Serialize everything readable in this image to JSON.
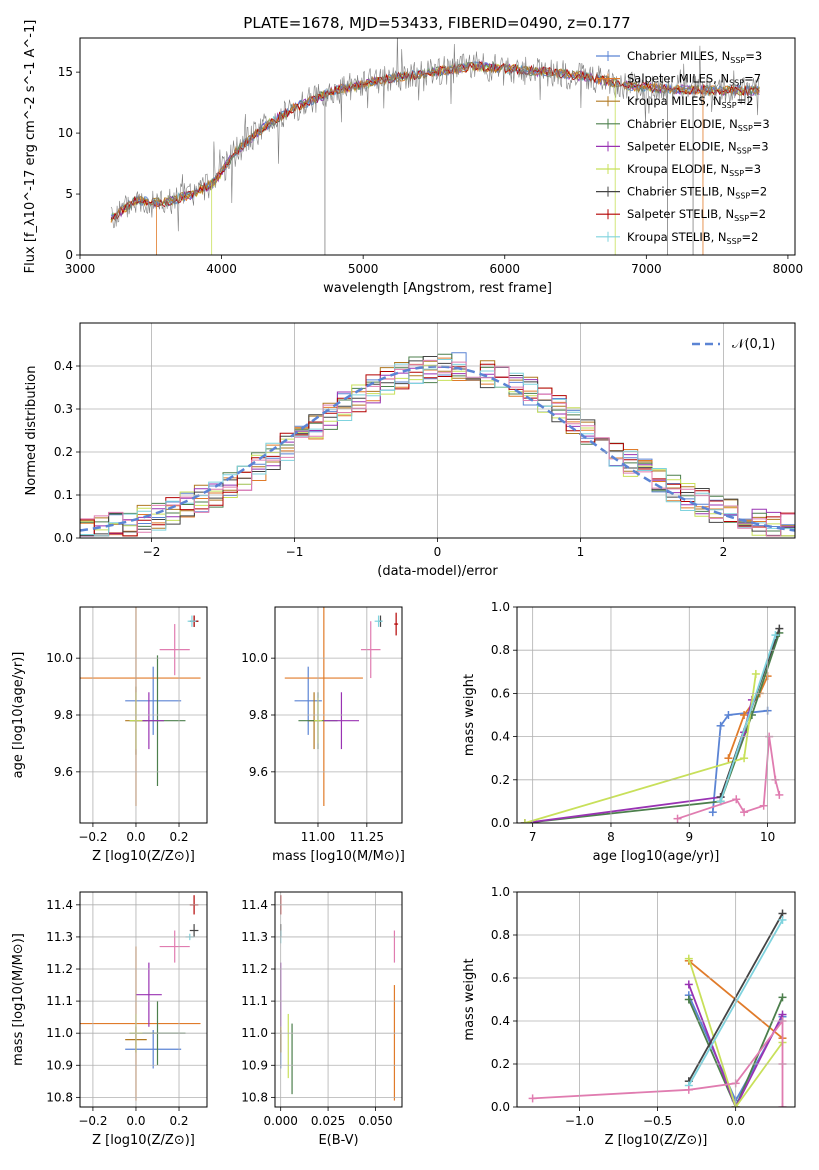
{
  "title": "PLATE=1678, MJD=53433, FIBERID=0490, z=0.177",
  "colors": {
    "chabrier_miles": "#5b84d4",
    "salpeter_miles": "#e07b2a",
    "kroupa_miles": "#b07820",
    "chabrier_elodie": "#4c7f4c",
    "salpeter_elodie": "#9933b3",
    "kroupa_elodie": "#c8e05a",
    "chabrier_stelib": "#444444",
    "salpeter_stelib": "#b30000",
    "kroupa_stelib": "#7fd3de",
    "pink": "#e07cb0",
    "gray": "#7f7f7f",
    "grid": "#b0b0b0",
    "normal_curve": "#5b84d4"
  },
  "chart_data": [
    {
      "id": "spectrum",
      "type": "line",
      "xlabel": "wavelength [Angstrom, rest frame]",
      "ylabel": "Flux [f_λ10^-17 erg cm^-2 s^-1 A^-1]",
      "xlim": [
        3000,
        8050
      ],
      "ylim": [
        0,
        17.8
      ],
      "xticks": [
        "3000",
        "4000",
        "5000",
        "6000",
        "7000",
        "8000"
      ],
      "yticks": [
        "0",
        "5",
        "10",
        "15"
      ],
      "grid": false,
      "legend_position": "right",
      "legend": [
        {
          "label": "Chabrier MILES, N_SSP=3",
          "color": "chabrier_miles"
        },
        {
          "label": "Salpeter MILES, N_SSP=7",
          "color": "salpeter_miles"
        },
        {
          "label": "Kroupa MILES, N_SSP=2",
          "color": "kroupa_miles"
        },
        {
          "label": "Chabrier ELODIE, N_SSP=3",
          "color": "chabrier_elodie"
        },
        {
          "label": "Salpeter ELODIE, N_SSP=3",
          "color": "salpeter_elodie"
        },
        {
          "label": "Kroupa ELODIE, N_SSP=3",
          "color": "kroupa_elodie"
        },
        {
          "label": "Chabrier STELIB, N_SSP=2",
          "color": "chabrier_stelib"
        },
        {
          "label": "Salpeter STELIB, N_SSP=2",
          "color": "salpeter_stelib"
        },
        {
          "label": "Kroupa STELIB, N_SSP=2",
          "color": "kroupa_stelib"
        }
      ],
      "continuum": {
        "x": [
          3220,
          3400,
          3600,
          3800,
          3950,
          4100,
          4300,
          4500,
          4800,
          5000,
          5200,
          5500,
          5800,
          6000,
          6300,
          6600,
          6900,
          7200,
          7500,
          7800
        ],
        "y": [
          3.0,
          4.5,
          4.3,
          5.0,
          6.0,
          8.5,
          10.5,
          12.0,
          13.5,
          14.0,
          14.5,
          15.0,
          15.5,
          15.3,
          15.0,
          14.6,
          13.8,
          13.6,
          13.5,
          13.5
        ]
      }
    },
    {
      "id": "residuals",
      "type": "histogram",
      "xlabel": "(data-model)/error",
      "ylabel": "Normed distribution",
      "xlim": [
        -2.5,
        2.5
      ],
      "ylim": [
        0,
        0.5
      ],
      "xticks": [
        "−2",
        "−1",
        "0",
        "1",
        "2"
      ],
      "yticks": [
        "0.0",
        "0.1",
        "0.2",
        "0.3",
        "0.4"
      ],
      "grid": true,
      "legend_position": "top-right",
      "legend_label": "𝒩(0,1)",
      "bin_width": 0.1
    },
    {
      "id": "z_age",
      "type": "errorbar",
      "xlabel": "Z [log10(Z/Z⊙)]",
      "ylabel": "age [log10(age/yr)]",
      "xlim": [
        -0.26,
        0.33
      ],
      "ylim": [
        9.42,
        10.18
      ],
      "xticks": [
        "−0.2",
        "0.0",
        "0.2"
      ],
      "yticks": [
        "9.6",
        "9.8",
        "10.0"
      ],
      "grid": true,
      "points": [
        {
          "x": 0.08,
          "y": 9.85,
          "xerr": 0.13,
          "yerr": 0.12,
          "color": "chabrier_miles"
        },
        {
          "x": 0.0,
          "y": 9.93,
          "xerr": 0.3,
          "yerr": 0.45,
          "color": "salpeter_miles"
        },
        {
          "x": 0.0,
          "y": 9.78,
          "xerr": 0.05,
          "yerr": 0.12,
          "color": "kroupa_miles"
        },
        {
          "x": 0.1,
          "y": 9.78,
          "xerr": 0.13,
          "yerr": 0.23,
          "color": "chabrier_elodie"
        },
        {
          "x": 0.06,
          "y": 9.78,
          "xerr": 0.07,
          "yerr": 0.1,
          "color": "salpeter_elodie"
        },
        {
          "x": 0.0,
          "y": 9.78,
          "xerr": 0.03,
          "yerr": 0.1,
          "color": "kroupa_elodie"
        },
        {
          "x": 0.27,
          "y": 10.13,
          "xerr": 0.02,
          "yerr": 0.02,
          "color": "chabrier_stelib"
        },
        {
          "x": 0.27,
          "y": 10.13,
          "xerr": 0.02,
          "yerr": 0.02,
          "color": "salpeter_stelib"
        },
        {
          "x": 0.26,
          "y": 10.13,
          "xerr": 0.02,
          "yerr": 0.02,
          "color": "kroupa_stelib"
        },
        {
          "x": 0.18,
          "y": 10.03,
          "xerr": 0.07,
          "yerr": 0.09,
          "color": "pink"
        }
      ]
    },
    {
      "id": "mass_age",
      "type": "errorbar",
      "xlabel": "mass [log10(M/M⊙)]",
      "ylabel": "",
      "xlim": [
        10.78,
        11.43
      ],
      "ylim": [
        9.42,
        10.18
      ],
      "xticks": [
        "11.00",
        "11.25"
      ],
      "yticks": [
        "9.6",
        "9.8",
        "10.0"
      ],
      "grid": true,
      "points": [
        {
          "x": 10.95,
          "y": 9.85,
          "xerr": 0.07,
          "yerr": 0.12,
          "color": "chabrier_miles"
        },
        {
          "x": 11.03,
          "y": 9.93,
          "xerr": 0.2,
          "yerr": 0.45,
          "color": "salpeter_miles"
        },
        {
          "x": 10.98,
          "y": 9.78,
          "xerr": 0.03,
          "yerr": 0.1,
          "color": "kroupa_miles"
        },
        {
          "x": 11.0,
          "y": 9.78,
          "xerr": 0.1,
          "yerr": 0.1,
          "color": "chabrier_elodie"
        },
        {
          "x": 11.12,
          "y": 9.78,
          "xerr": 0.09,
          "yerr": 0.1,
          "color": "salpeter_elodie"
        },
        {
          "x": 11.0,
          "y": 9.78,
          "xerr": 0.02,
          "yerr": 0.08,
          "color": "kroupa_elodie"
        },
        {
          "x": 11.32,
          "y": 10.13,
          "xerr": 0.01,
          "yerr": 0.02,
          "color": "chabrier_stelib"
        },
        {
          "x": 11.4,
          "y": 10.12,
          "xerr": 0.01,
          "yerr": 0.04,
          "color": "salpeter_stelib"
        },
        {
          "x": 11.31,
          "y": 10.13,
          "xerr": 0.02,
          "yerr": 0.02,
          "color": "kroupa_stelib"
        },
        {
          "x": 11.27,
          "y": 10.03,
          "xerr": 0.05,
          "yerr": 0.1,
          "color": "pink"
        }
      ]
    },
    {
      "id": "age_weight",
      "type": "line",
      "xlabel": "age [log10(age/yr)]",
      "ylabel": "mass weight",
      "xlim": [
        6.8,
        10.35
      ],
      "ylim": [
        0,
        1.0
      ],
      "xticks": [
        "7",
        "8",
        "9",
        "10"
      ],
      "yticks": [
        "0.0",
        "0.2",
        "0.4",
        "0.6",
        "0.8",
        "1.0"
      ],
      "grid": true,
      "series": [
        {
          "color": "chabrier_miles",
          "x": [
            9.3,
            9.4,
            9.5,
            10.0
          ],
          "y": [
            0.05,
            0.45,
            0.5,
            0.52
          ]
        },
        {
          "color": "salpeter_miles",
          "x": [
            9.5,
            9.7,
            9.9,
            10.0
          ],
          "y": [
            0.3,
            0.5,
            0.6,
            0.68
          ]
        },
        {
          "color": "chabrier_elodie",
          "x": [
            6.9,
            9.4,
            9.8,
            10.15
          ],
          "y": [
            0.0,
            0.1,
            0.5,
            0.88
          ]
        },
        {
          "color": "salpeter_elodie",
          "x": [
            6.9,
            9.4,
            9.7,
            9.8
          ],
          "y": [
            0.0,
            0.12,
            0.42,
            0.57
          ]
        },
        {
          "color": "kroupa_elodie",
          "x": [
            6.9,
            9.7,
            9.85
          ],
          "y": [
            0.0,
            0.3,
            0.69
          ]
        },
        {
          "color": "chabrier_stelib",
          "x": [
            9.4,
            10.15
          ],
          "y": [
            0.12,
            0.9
          ]
        },
        {
          "color": "kroupa_stelib",
          "x": [
            9.4,
            10.1
          ],
          "y": [
            0.1,
            0.87
          ]
        },
        {
          "color": "pink",
          "x": [
            8.85,
            9.6,
            9.7,
            9.95,
            10.02,
            10.1,
            10.15
          ],
          "y": [
            0.02,
            0.11,
            0.05,
            0.08,
            0.4,
            0.2,
            0.13
          ]
        }
      ]
    },
    {
      "id": "z_mass",
      "type": "errorbar",
      "xlabel": "Z [log10(Z/Z⊙)]",
      "ylabel": "mass [log10(M/M⊙)]",
      "xlim": [
        -0.26,
        0.33
      ],
      "ylim": [
        10.77,
        11.44
      ],
      "xticks": [
        "−0.2",
        "0.0",
        "0.2"
      ],
      "yticks": [
        "10.8",
        "10.9",
        "11.0",
        "11.1",
        "11.2",
        "11.3",
        "11.4"
      ],
      "grid": true,
      "points": [
        {
          "x": 0.08,
          "y": 10.95,
          "xerr": 0.13,
          "yerr": 0.06,
          "color": "chabrier_miles"
        },
        {
          "x": 0.0,
          "y": 11.03,
          "xerr": 0.3,
          "yerr": 0.24,
          "color": "salpeter_miles"
        },
        {
          "x": 0.0,
          "y": 10.98,
          "xerr": 0.05,
          "yerr": 0.04,
          "color": "kroupa_miles"
        },
        {
          "x": 0.1,
          "y": 11.0,
          "xerr": 0.13,
          "yerr": 0.1,
          "color": "chabrier_elodie"
        },
        {
          "x": 0.06,
          "y": 11.12,
          "xerr": 0.06,
          "yerr": 0.1,
          "color": "salpeter_elodie"
        },
        {
          "x": 0.0,
          "y": 11.0,
          "xerr": 0.03,
          "yerr": 0.06,
          "color": "kroupa_elodie"
        },
        {
          "x": 0.27,
          "y": 11.32,
          "xerr": 0.02,
          "yerr": 0.02,
          "color": "chabrier_stelib"
        },
        {
          "x": 0.27,
          "y": 11.4,
          "xerr": 0.02,
          "yerr": 0.03,
          "color": "salpeter_stelib"
        },
        {
          "x": 0.25,
          "y": 11.3,
          "xerr": 0.02,
          "yerr": 0.01,
          "color": "kroupa_stelib"
        },
        {
          "x": 0.18,
          "y": 11.27,
          "xerr": 0.07,
          "yerr": 0.05,
          "color": "pink"
        }
      ]
    },
    {
      "id": "ebv_mass",
      "type": "errorbar",
      "xlabel": "E(B-V)",
      "ylabel": "",
      "xlim": [
        -0.003,
        0.064
      ],
      "ylim": [
        10.77,
        11.44
      ],
      "xticks": [
        "0.000",
        "0.025",
        "0.050"
      ],
      "yticks": [
        "10.8",
        "10.9",
        "11.0",
        "11.1",
        "11.2",
        "11.3",
        "11.4"
      ],
      "grid": true,
      "points": [
        {
          "x": 0.0,
          "y": 10.95,
          "xerr": 0.0,
          "yerr": 0.06,
          "color": "chabrier_miles"
        },
        {
          "x": 0.06,
          "y": 10.97,
          "xerr": 0.0,
          "yerr": 0.18,
          "color": "salpeter_miles"
        },
        {
          "x": 0.0,
          "y": 10.98,
          "xerr": 0.0,
          "yerr": 0.04,
          "color": "kroupa_miles"
        },
        {
          "x": 0.006,
          "y": 10.92,
          "xerr": 0.0,
          "yerr": 0.11,
          "color": "chabrier_elodie"
        },
        {
          "x": 0.0,
          "y": 11.12,
          "xerr": 0.0,
          "yerr": 0.1,
          "color": "salpeter_elodie"
        },
        {
          "x": 0.004,
          "y": 10.96,
          "xerr": 0.0,
          "yerr": 0.1,
          "color": "kroupa_elodie"
        },
        {
          "x": 0.0,
          "y": 11.32,
          "xerr": 0.0,
          "yerr": 0.02,
          "color": "chabrier_stelib"
        },
        {
          "x": 0.0,
          "y": 11.4,
          "xerr": 0.0,
          "yerr": 0.03,
          "color": "salpeter_stelib"
        },
        {
          "x": 0.0,
          "y": 11.3,
          "xerr": 0.0,
          "yerr": 0.02,
          "color": "kroupa_stelib"
        },
        {
          "x": 0.06,
          "y": 11.27,
          "xerr": 0.0,
          "yerr": 0.05,
          "color": "pink"
        }
      ]
    },
    {
      "id": "z_weight",
      "type": "line",
      "xlabel": "Z [log10(Z/Z⊙)]",
      "ylabel": "mass weight",
      "xlim": [
        -1.4,
        0.38
      ],
      "ylim": [
        0,
        1.0
      ],
      "xticks": [
        "−1.0",
        "−0.5",
        "0.0"
      ],
      "yticks": [
        "0.0",
        "0.2",
        "0.4",
        "0.6",
        "0.8",
        "1.0"
      ],
      "grid": true,
      "series": [
        {
          "color": "chabrier_miles",
          "x": [
            -0.3,
            0.0,
            0.3
          ],
          "y": [
            0.52,
            0.03,
            0.42
          ]
        },
        {
          "color": "salpeter_miles",
          "x": [
            -0.3,
            0.3
          ],
          "y": [
            0.68,
            0.32
          ]
        },
        {
          "color": "chabrier_elodie",
          "x": [
            -0.3,
            0.0,
            0.3
          ],
          "y": [
            0.5,
            0.0,
            0.51
          ]
        },
        {
          "color": "salpeter_elodie",
          "x": [
            -0.3,
            0.0,
            0.3
          ],
          "y": [
            0.57,
            0.0,
            0.43
          ]
        },
        {
          "color": "kroupa_elodie",
          "x": [
            -0.3,
            0.0,
            0.3
          ],
          "y": [
            0.69,
            0.0,
            0.3
          ]
        },
        {
          "color": "chabrier_stelib",
          "x": [
            -0.3,
            0.3
          ],
          "y": [
            0.12,
            0.9
          ]
        },
        {
          "color": "kroupa_stelib",
          "x": [
            -0.3,
            0.3
          ],
          "y": [
            0.1,
            0.87
          ]
        },
        {
          "color": "pink",
          "x": [
            -1.3,
            -0.3,
            0.0,
            0.3,
            0.3,
            0.3
          ],
          "y": [
            0.04,
            0.08,
            0.11,
            0.4,
            0.2,
            0.0
          ]
        }
      ]
    }
  ]
}
